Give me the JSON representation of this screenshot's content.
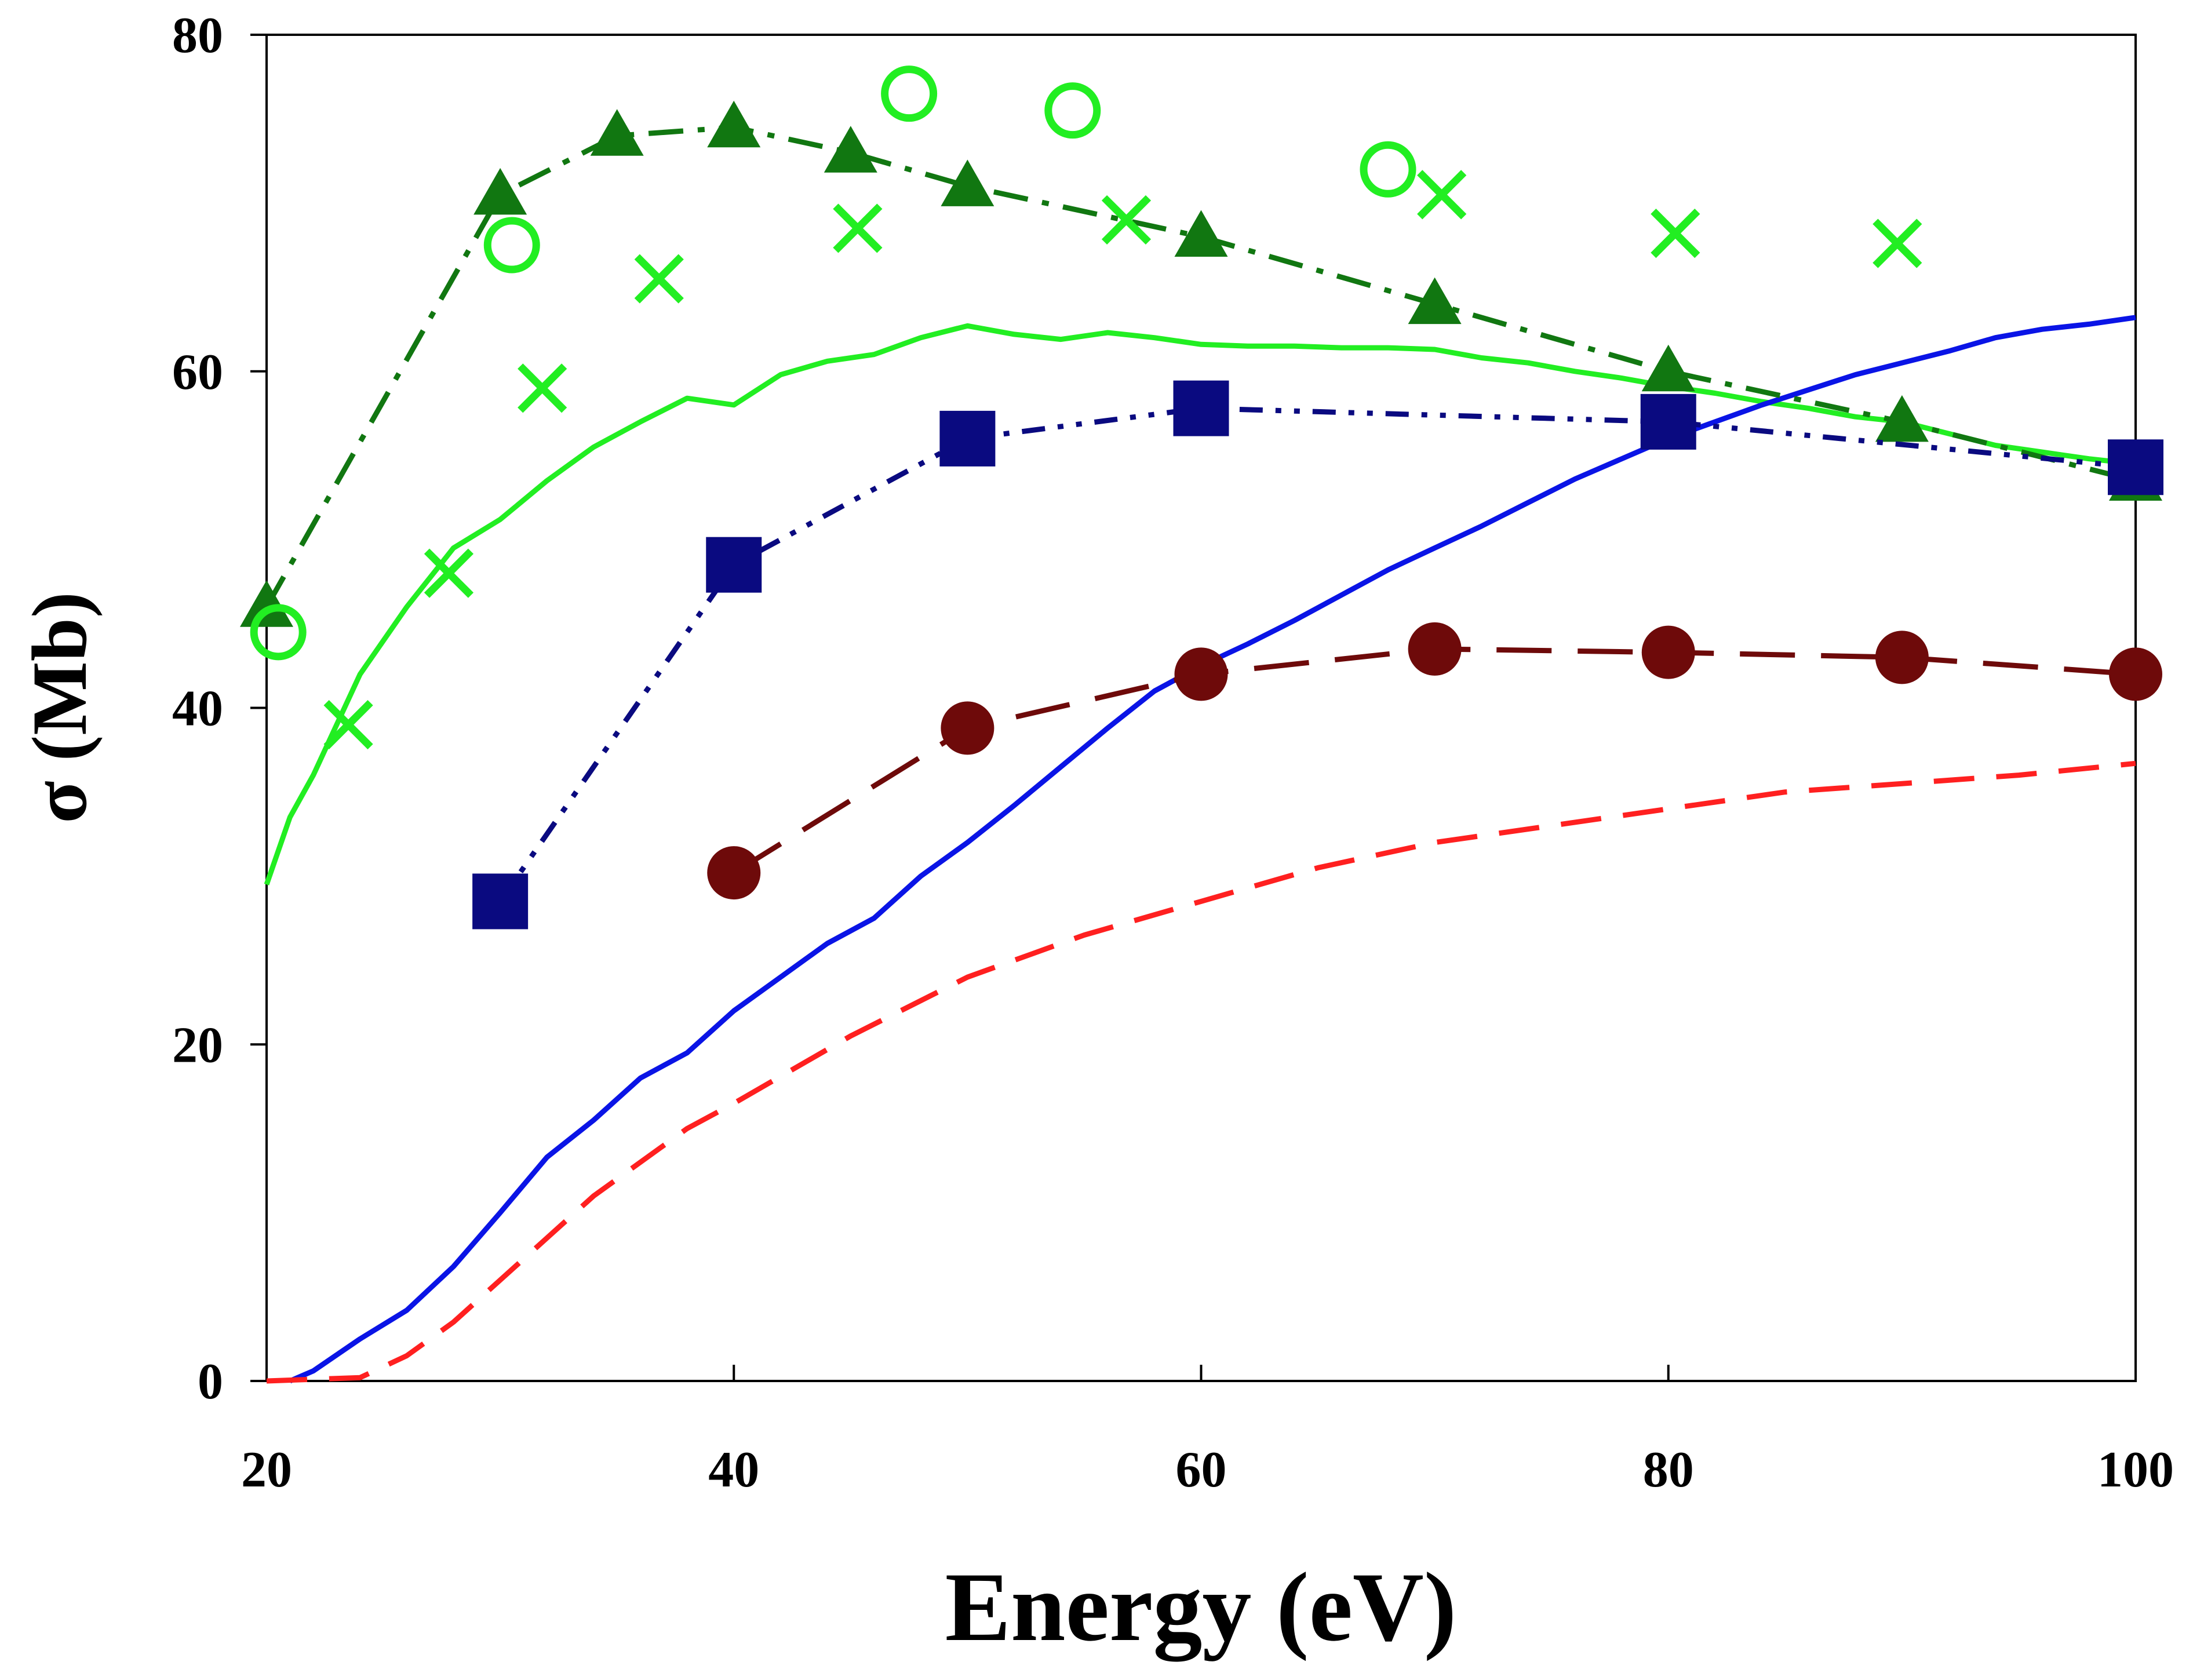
{
  "chart_data": {
    "type": "line",
    "title": "",
    "xlabel": "Energy (eV)",
    "ylabel": "σ (Mb)",
    "xlim": [
      20,
      100
    ],
    "ylim": [
      0,
      80
    ],
    "xticks": [
      20,
      40,
      60,
      80,
      100
    ],
    "yticks": [
      0,
      20,
      40,
      60,
      80
    ],
    "xtick_labels": [
      "20",
      "40",
      "60",
      "80",
      "100"
    ],
    "ytick_labels": [
      "0",
      "20",
      "40",
      "60",
      "80"
    ],
    "grid": false,
    "legend": "none",
    "series": [
      {
        "name": "green-solid-curve",
        "color": "#22ee22",
        "style": "solid",
        "marker": "none",
        "x": [
          20,
          21,
          22,
          24,
          26,
          28,
          30,
          32,
          34,
          36,
          38,
          40,
          42,
          44,
          46,
          48,
          50,
          52,
          54,
          56,
          58,
          60,
          62,
          64,
          66,
          68,
          70,
          72,
          74,
          76,
          78,
          80,
          82,
          84,
          86,
          88,
          90,
          92,
          94,
          96,
          98,
          100
        ],
        "y": [
          29.5,
          33.5,
          36,
          42,
          46,
          49.5,
          51.2,
          53.5,
          55.5,
          57,
          58.4,
          58,
          59.8,
          60.6,
          61,
          62,
          62.7,
          62.2,
          61.9,
          62.3,
          62,
          61.6,
          61.5,
          61.5,
          61.4,
          61.4,
          61.3,
          60.8,
          60.5,
          60,
          59.6,
          59.1,
          58.7,
          58.2,
          57.8,
          57.3,
          57,
          56.3,
          55.6,
          55.2,
          54.8,
          54.5
        ]
      },
      {
        "name": "blue-solid-curve",
        "color": "#0a14e6",
        "style": "solid",
        "marker": "none",
        "x": [
          21,
          22,
          24,
          26,
          28,
          30,
          32,
          34,
          36,
          38,
          40,
          42,
          44,
          46,
          48,
          50,
          52,
          54,
          56,
          58,
          60,
          62,
          64,
          66,
          68,
          70,
          72,
          74,
          76,
          78,
          80,
          82,
          84,
          86,
          88,
          90,
          92,
          94,
          96,
          98,
          100
        ],
        "y": [
          0,
          0.6,
          2.5,
          4.2,
          6.8,
          10,
          13.3,
          15.5,
          18,
          19.5,
          22,
          24,
          26,
          27.5,
          30,
          32,
          34.2,
          36.5,
          38.8,
          41,
          42.5,
          43.8,
          45.2,
          46.7,
          48.2,
          49.5,
          50.8,
          52.2,
          53.6,
          54.8,
          56,
          57,
          58,
          58.9,
          59.8,
          60.5,
          61.2,
          62,
          62.5,
          62.8,
          63.2
        ]
      },
      {
        "name": "red-dashed-curve",
        "color": "#ff2020",
        "style": "dashed",
        "marker": "none",
        "x": [
          20,
          24,
          26,
          28,
          30,
          32,
          34,
          36,
          38,
          40,
          45,
          50,
          55,
          60,
          65,
          70,
          75,
          80,
          85,
          90,
          95,
          100
        ],
        "y": [
          0,
          0.2,
          1.5,
          3.5,
          6,
          8.5,
          11,
          13,
          15,
          16.5,
          20.5,
          24,
          26.5,
          28.5,
          30.5,
          32,
          33,
          34,
          35,
          35.5,
          36,
          36.7
        ]
      },
      {
        "name": "dark-green-triangles-dash-dot",
        "color": "#117711",
        "style": "dashdot",
        "marker": "triangle",
        "x": [
          20,
          30,
          35,
          40,
          45,
          50,
          60,
          70,
          80,
          90,
          100
        ],
        "y": [
          46,
          70.5,
          74,
          74.5,
          73,
          71,
          68,
          64,
          60,
          57,
          53.5
        ]
      },
      {
        "name": "navy-squares-dash-dot-dot",
        "color": "#0a0a80",
        "style": "dashdotdot",
        "marker": "square",
        "x": [
          30,
          40,
          50,
          60,
          80,
          100
        ],
        "y": [
          28.5,
          48.5,
          56,
          57.8,
          57,
          54.3
        ]
      },
      {
        "name": "maroon-circles-dashed",
        "color": "#6e0a0a",
        "style": "longdash",
        "marker": "filled-circle",
        "x": [
          40,
          50,
          60,
          70,
          80,
          90,
          100
        ],
        "y": [
          30.2,
          38.8,
          42,
          43.5,
          43.3,
          43,
          42
        ]
      },
      {
        "name": "green-crosses",
        "color": "#22ee22",
        "style": "none",
        "marker": "x",
        "x": [
          23.5,
          27.8,
          31.8,
          36.8,
          45.3,
          56.8,
          70.3,
          80.3,
          89.8
        ],
        "y": [
          39,
          48,
          59,
          65.5,
          68.5,
          69,
          70.5,
          68.2,
          67.6
        ]
      },
      {
        "name": "green-open-circles",
        "color": "#22ee22",
        "style": "none",
        "marker": "open-circle",
        "x": [
          20.5,
          30.5,
          47.5,
          54.5,
          68
        ],
        "y": [
          44.5,
          67.5,
          76.5,
          75.5,
          72
        ]
      }
    ]
  }
}
